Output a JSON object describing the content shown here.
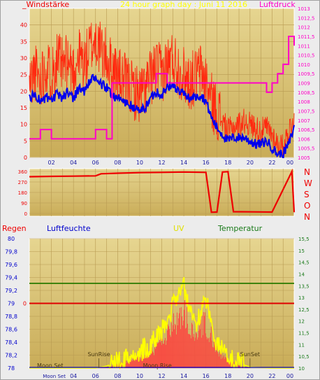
{
  "header": {
    "wind_title": "_Windstärke",
    "graph_title": "24 hour graph day : Juni 11 2016",
    "pressure_title": "Luftdruck"
  },
  "bottom_header": {
    "rain": "Regen",
    "humidity": "Luftfeuchte",
    "uv": "UV",
    "temperature": "Temperatur"
  },
  "compass": [
    "N",
    "W",
    "S",
    "O",
    "N"
  ],
  "colors": {
    "panel_bg": "#d9c37a",
    "wind_red": "#ff2a10",
    "wind_blue": "#0000ee",
    "pressure_magenta": "#ff00c8",
    "dir_red": "#ee0000",
    "uv_yellow": "#ffff00",
    "temp_green": "#2a7a00",
    "rain_red": "#e00000",
    "humidity_blue": "#0000cc",
    "area_red": "#ff4040"
  },
  "chart_data": [
    {
      "type": "line",
      "title": "24 hour graph day : Juni 11 2016",
      "x_ticks": [
        "02",
        "04",
        "06",
        "08",
        "10",
        "12",
        "14",
        "16",
        "18",
        "20",
        "22",
        "00"
      ],
      "y_left_label": "_Windstärke",
      "y_left_ticks": [
        "0",
        "5",
        "10",
        "15",
        "20",
        "25",
        "30",
        "35",
        "40"
      ],
      "y_left_lim": [
        0,
        45
      ],
      "y_right_label": "Luftdruck",
      "y_right_ticks": [
        "1005",
        "1005,5",
        "1006",
        "1006,5",
        "1007",
        "1007,5",
        "1008",
        "1008,5",
        "1009",
        "1009,5",
        "1010",
        "1010,5",
        "1011",
        "1011,5",
        "1012",
        "1012,5",
        "1013"
      ],
      "y_right_lim": [
        1005,
        1013
      ],
      "x_hours": [
        0,
        0.5,
        1,
        1.5,
        2,
        2.5,
        3,
        3.5,
        4,
        4.5,
        5,
        5.5,
        6,
        6.5,
        7,
        7.5,
        8,
        8.5,
        9,
        9.5,
        10,
        10.5,
        11,
        11.5,
        12,
        12.5,
        13,
        13.5,
        14,
        14.5,
        15,
        15.5,
        16,
        16.5,
        17,
        17.5,
        18,
        18.5,
        19,
        19.5,
        20,
        20.5,
        21,
        21.5,
        22,
        22.5,
        23,
        23.5,
        24
      ],
      "series": [
        {
          "name": "gust",
          "values": [
            22,
            26,
            24,
            28,
            25,
            30,
            27,
            29,
            26,
            31,
            28,
            33,
            36,
            32,
            30,
            27,
            25,
            23,
            22,
            20,
            19,
            21,
            24,
            27,
            25,
            28,
            30,
            27,
            25,
            23,
            24,
            26,
            23,
            17,
            14,
            11,
            8,
            9,
            10,
            11,
            10,
            9,
            8,
            9,
            7,
            4,
            3,
            8,
            12
          ]
        },
        {
          "name": "average",
          "values": [
            18,
            19,
            17,
            18,
            17,
            19,
            18,
            20,
            18,
            21,
            20,
            23,
            24,
            22,
            21,
            19,
            18,
            17,
            16,
            15,
            14,
            15,
            18,
            20,
            19,
            21,
            22,
            20,
            19,
            18,
            18,
            19,
            17,
            12,
            9,
            7,
            5,
            6,
            6,
            6,
            5,
            4,
            4,
            5,
            3,
            1,
            1,
            4,
            9
          ]
        },
        {
          "name": "pressure",
          "values": [
            1006,
            1006,
            1006.5,
            1006.5,
            1006,
            1006,
            1006,
            1006,
            1006,
            1006,
            1006,
            1006,
            1006.5,
            1006.5,
            1006,
            1009,
            1009,
            1009,
            1009,
            1009,
            1009,
            1009,
            1009,
            1009.5,
            1009.5,
            1009,
            1009,
            1009,
            1009,
            1009,
            1009,
            1009,
            1009,
            1009,
            1009,
            1009,
            1009,
            1009,
            1009,
            1009,
            1009,
            1009,
            1009,
            1008.5,
            1009,
            1009.5,
            1010,
            1011.5,
            1011
          ]
        }
      ]
    },
    {
      "type": "line",
      "title": "",
      "x_ticks": [],
      "y_ticks": [
        "0",
        "90",
        "180",
        "270",
        "360"
      ],
      "y_lim": [
        0,
        360
      ],
      "x_hours": [
        0,
        2,
        4,
        6,
        6.5,
        8,
        10,
        12,
        14,
        16,
        16.5,
        17,
        17.5,
        18,
        18.5,
        20,
        22,
        23.8,
        24
      ],
      "series": [
        {
          "name": "direction",
          "values": [
            315,
            318,
            320,
            322,
            340,
            345,
            350,
            352,
            355,
            352,
            10,
            12,
            355,
            358,
            15,
            14,
            12,
            360,
            10
          ]
        }
      ]
    },
    {
      "type": "area",
      "title": "",
      "x_ticks": [
        "Moon Set",
        "04",
        "06",
        "08",
        "10",
        "12",
        "14",
        "16",
        "18",
        "20",
        "22",
        "00"
      ],
      "y_left_label": "Regen",
      "y_left_ticks": [
        "78",
        "78,2",
        "78,4",
        "78,6",
        "78,8",
        "79",
        "79,2",
        "79,4",
        "79,6",
        "79,8",
        "80"
      ],
      "y_left_lim": [
        78,
        80
      ],
      "rain_value": 0,
      "y_right_label": "Temperatur",
      "y_right_ticks": [
        "10",
        "10,5",
        "11",
        "11,5",
        "12",
        "12,5",
        "13",
        "13,5",
        "14",
        "14,5",
        "15",
        "15,5"
      ],
      "y_right_lim": [
        10,
        15.5
      ],
      "annotations": [
        "Moon Set",
        "SunRise",
        "Moon Rise",
        "SunSet"
      ],
      "x_hours": [
        0,
        2,
        4,
        6,
        7,
        8,
        9,
        10,
        11,
        12,
        12.5,
        13,
        13.5,
        14,
        14.5,
        15,
        15.5,
        16,
        16.5,
        17,
        18,
        19,
        20,
        22,
        24
      ],
      "series": [
        {
          "name": "humidity",
          "values": [
            0,
            0,
            0,
            0,
            0,
            0,
            0,
            0,
            0,
            0,
            0,
            0,
            0,
            0,
            0,
            0,
            0,
            0,
            0,
            0,
            0,
            0,
            0,
            0,
            0
          ]
        },
        {
          "name": "uv",
          "values": [
            0,
            0,
            0,
            0,
            0.2,
            0.6,
            1.0,
            1.6,
            2.4,
            3.6,
            4.5,
            6.2,
            7.5,
            8.0,
            6.0,
            4.0,
            5.5,
            6.8,
            4.5,
            2.5,
            1.2,
            0.5,
            0.1,
            0,
            0
          ]
        },
        {
          "name": "temperature",
          "values": [
            13.6,
            13.6,
            13.6,
            13.6,
            13.6,
            13.6,
            13.6,
            13.6,
            13.6,
            13.6,
            13.6,
            13.6,
            13.6,
            13.6,
            13.6,
            13.6,
            13.6,
            13.6,
            13.6,
            13.6,
            13.6,
            13.6,
            13.6,
            13.6,
            13.6
          ]
        },
        {
          "name": "solar",
          "values": [
            0,
            0,
            0,
            0,
            0.1,
            0.4,
            0.8,
            1.2,
            1.8,
            2.8,
            3.5,
            4.8,
            5.6,
            6.2,
            4.6,
            3.0,
            4.2,
            5.0,
            3.4,
            1.8,
            0.8,
            0.3,
            0,
            0,
            0
          ]
        }
      ]
    }
  ]
}
